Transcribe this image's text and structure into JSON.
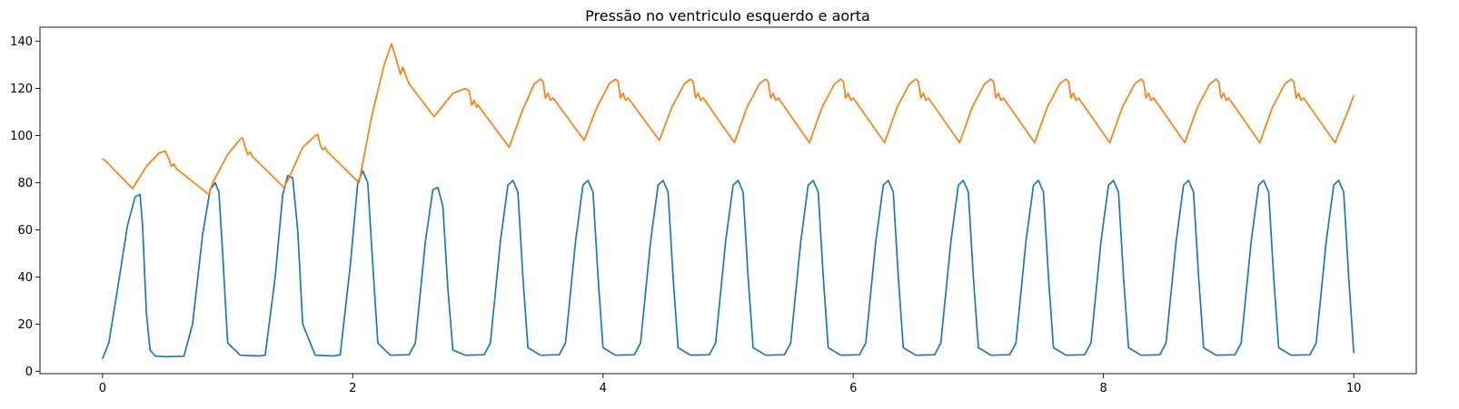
{
  "chart_data": {
    "type": "line",
    "title": "Pressão no ventriculo esquerdo e aorta",
    "xlabel": "",
    "ylabel": "",
    "xlim": [
      -0.5,
      10.5
    ],
    "ylim": [
      -1,
      146
    ],
    "x_ticks": [
      0,
      2,
      4,
      6,
      8,
      10
    ],
    "x_tick_labels": [
      "0",
      "2",
      "4",
      "6",
      "8",
      "10"
    ],
    "y_ticks": [
      0,
      20,
      40,
      60,
      80,
      100,
      120,
      140
    ],
    "y_tick_labels": [
      "0",
      "20",
      "40",
      "60",
      "80",
      "100",
      "120",
      "140"
    ],
    "grid": false,
    "legend": "none",
    "series": [
      {
        "color": "#1f77b4",
        "x": [
          0,
          0.05,
          0.12,
          0.2,
          0.26,
          0.3,
          0.32,
          0.35,
          0.38,
          0.42,
          0.5,
          0.65,
          0.72,
          0.8,
          0.86,
          0.9,
          0.93,
          0.96,
          1.0,
          1.1,
          1.25,
          1.3,
          1.38,
          1.44,
          1.48,
          1.52,
          1.56,
          1.6,
          1.7,
          1.85,
          1.9,
          1.98,
          2.04,
          2.08,
          2.12,
          2.16,
          2.2,
          2.3,
          2.45,
          2.5,
          2.58,
          2.64,
          2.68,
          2.72,
          2.76,
          2.8,
          2.9,
          3.05,
          3.1,
          3.18,
          3.24,
          3.28,
          3.32,
          3.36,
          3.4,
          3.5,
          3.65,
          3.7,
          3.78,
          3.84,
          3.88,
          3.92,
          3.96,
          4.0,
          4.1,
          4.25,
          4.3,
          4.38,
          4.44,
          4.48,
          4.52,
          4.56,
          4.6,
          4.7,
          4.85,
          4.9,
          4.98,
          5.04,
          5.08,
          5.12,
          5.16,
          5.2,
          5.3,
          5.45,
          5.5,
          5.58,
          5.64,
          5.68,
          5.72,
          5.76,
          5.8,
          5.9,
          6.05,
          6.1,
          6.18,
          6.24,
          6.28,
          6.32,
          6.36,
          6.4,
          6.5,
          6.65,
          6.7,
          6.78,
          6.84,
          6.88,
          6.92,
          6.96,
          7.0,
          7.1,
          7.25,
          7.3,
          7.38,
          7.44,
          7.48,
          7.52,
          7.56,
          7.6,
          7.7,
          7.85,
          7.9,
          7.98,
          8.04,
          8.08,
          8.12,
          8.16,
          8.2,
          8.3,
          8.45,
          8.5,
          8.58,
          8.64,
          8.68,
          8.72,
          8.76,
          8.8,
          8.9,
          9.05,
          9.1,
          9.18,
          9.24,
          9.28,
          9.32,
          9.36,
          9.4,
          9.5,
          9.65,
          9.7,
          9.78,
          9.84,
          9.88,
          9.92,
          9.96,
          10.0
        ],
        "y": [
          5.5,
          12,
          35,
          62,
          74,
          75,
          62,
          25,
          9,
          6.5,
          6.2,
          6.4,
          20,
          58,
          77,
          80,
          76,
          50,
          12,
          6.8,
          6.5,
          6.8,
          40,
          75,
          83,
          82,
          60,
          20,
          6.8,
          6.5,
          7,
          45,
          80,
          85,
          80,
          45,
          12,
          6.8,
          7,
          12,
          55,
          77,
          78,
          70,
          35,
          9,
          6.8,
          7,
          12,
          55,
          79,
          81,
          76,
          40,
          10,
          6.8,
          7,
          12,
          55,
          79,
          81,
          76,
          40,
          10,
          6.8,
          7,
          12,
          55,
          79,
          81,
          76,
          40,
          10,
          6.8,
          7,
          12,
          55,
          79,
          81,
          76,
          40,
          10,
          6.8,
          7,
          12,
          55,
          79,
          81,
          76,
          40,
          10,
          6.8,
          7,
          12,
          55,
          79,
          81,
          76,
          40,
          10,
          6.8,
          7,
          12,
          55,
          79,
          81,
          76,
          40,
          10,
          6.8,
          7,
          12,
          55,
          79,
          81,
          76,
          40,
          10,
          6.8,
          7,
          12,
          55,
          79,
          81,
          76,
          40,
          10,
          6.8,
          7,
          12,
          55,
          79,
          81,
          76,
          40,
          10,
          6.8,
          7,
          12,
          55,
          79,
          81,
          76,
          40,
          10,
          6.8,
          7,
          12,
          55,
          79,
          81,
          76,
          40,
          8
        ]
      },
      {
        "color": "#ff7f0e",
        "x": [
          0,
          0.02,
          0.24,
          0.35,
          0.45,
          0.5,
          0.53,
          0.55,
          0.57,
          0.59,
          0.85,
          0.88,
          1.0,
          1.1,
          1.12,
          1.14,
          1.16,
          1.18,
          1.2,
          1.45,
          1.48,
          1.6,
          1.7,
          1.72,
          1.74,
          1.76,
          1.78,
          1.8,
          2.05,
          2.15,
          2.25,
          2.31,
          2.36,
          2.38,
          2.4,
          2.42,
          2.45,
          2.65,
          2.8,
          2.9,
          2.93,
          2.95,
          2.97,
          2.99,
          3.0,
          3.25,
          3.35,
          3.45,
          3.5,
          3.52,
          3.54,
          3.56,
          3.58,
          3.6,
          3.85,
          3.95,
          4.05,
          4.1,
          4.12,
          4.14,
          4.16,
          4.18,
          4.2,
          4.45,
          4.55,
          4.65,
          4.7,
          4.72,
          4.74,
          4.76,
          4.78,
          4.8,
          5.05,
          5.15,
          5.25,
          5.3,
          5.32,
          5.34,
          5.36,
          5.38,
          5.4,
          5.65,
          5.75,
          5.85,
          5.9,
          5.92,
          5.94,
          5.96,
          5.98,
          6.0,
          6.25,
          6.35,
          6.45,
          6.5,
          6.52,
          6.54,
          6.56,
          6.58,
          6.6,
          6.85,
          6.95,
          7.05,
          7.1,
          7.12,
          7.14,
          7.16,
          7.18,
          7.2,
          7.45,
          7.55,
          7.65,
          7.7,
          7.72,
          7.74,
          7.76,
          7.78,
          7.8,
          8.05,
          8.15,
          8.25,
          8.3,
          8.32,
          8.34,
          8.36,
          8.38,
          8.4,
          8.65,
          8.75,
          8.85,
          8.9,
          8.92,
          8.94,
          8.96,
          8.98,
          9.0,
          9.25,
          9.35,
          9.45,
          9.5,
          9.52,
          9.54,
          9.56,
          9.58,
          9.6,
          9.85,
          9.95,
          10.0
        ],
        "y": [
          90,
          89.5,
          77.5,
          87,
          92.5,
          93.5,
          90,
          87,
          88,
          86,
          75,
          80,
          92,
          98.5,
          99,
          95,
          92,
          93,
          91,
          78,
          81,
          95,
          100,
          100.5,
          96,
          94,
          95,
          93,
          80,
          108,
          130,
          139,
          130,
          126,
          129,
          126,
          122,
          108,
          118,
          120,
          119,
          113,
          115,
          112,
          113,
          95,
          110,
          122,
          124,
          123,
          116,
          118,
          115,
          116,
          98,
          112,
          122,
          124,
          123,
          116,
          118,
          115,
          116,
          98,
          112,
          122,
          124,
          123,
          116,
          118,
          115,
          116,
          97,
          112,
          122,
          124,
          123,
          116,
          118,
          115,
          116,
          97,
          112,
          122,
          124,
          123,
          116,
          118,
          115,
          116,
          97,
          112,
          122,
          124,
          123,
          116,
          118,
          115,
          116,
          97,
          112,
          122,
          124,
          123,
          116,
          118,
          115,
          116,
          97,
          112,
          122,
          124,
          123,
          116,
          118,
          115,
          116,
          97,
          112,
          122,
          124,
          123,
          116,
          118,
          115,
          116,
          97,
          112,
          122,
          124,
          123,
          116,
          118,
          115,
          116,
          97,
          112,
          122,
          124,
          123,
          116,
          118,
          115,
          116,
          97,
          110,
          117
        ]
      }
    ]
  }
}
